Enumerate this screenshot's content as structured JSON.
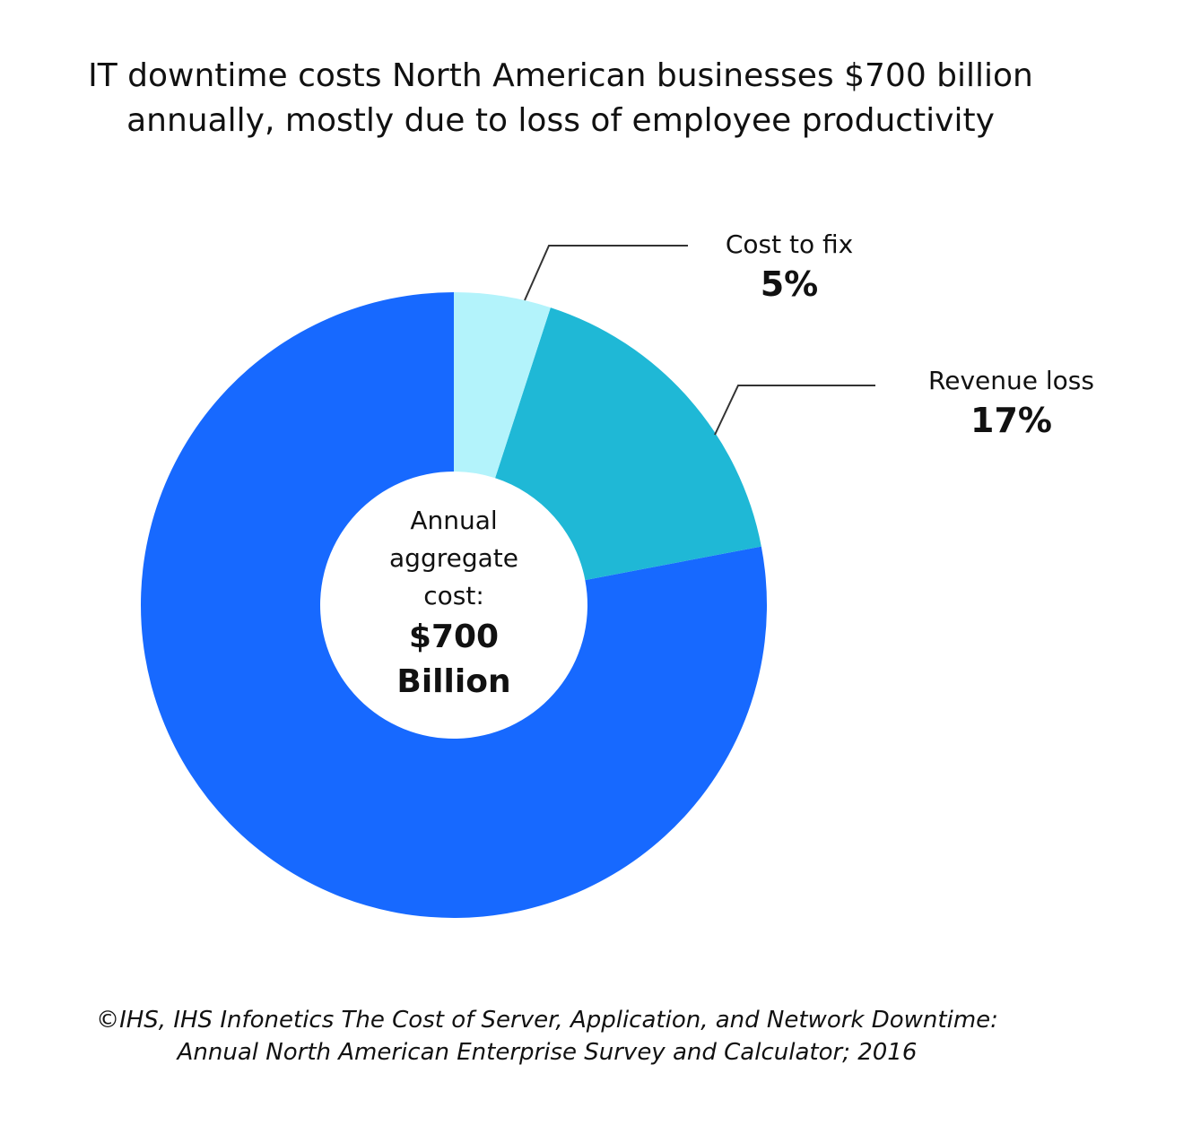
{
  "chart_data": {
    "type": "pie",
    "donut": true,
    "title_lines": [
      "IT downtime costs North American businesses $700 billion",
      "annually, mostly due to loss of employee productivity"
    ],
    "slices": [
      {
        "label": "Cost to fix",
        "value_label": "5%",
        "value": 5,
        "color": "#b3f3fb"
      },
      {
        "label": "Revenue loss",
        "value_label": "17%",
        "value": 17,
        "color": "#1fb8d6"
      },
      {
        "label": "",
        "value": 78,
        "color": "#1769ff"
      }
    ],
    "center": {
      "lines": [
        "Annual",
        "aggregate",
        "cost:"
      ],
      "value_lines": [
        "$700",
        "Billion"
      ]
    },
    "source_lines": [
      "©IHS, IHS Infonetics The Cost of Server, Application, and Network Downtime:",
      "Annual North American Enterprise Survey and Calculator; 2016"
    ]
  }
}
